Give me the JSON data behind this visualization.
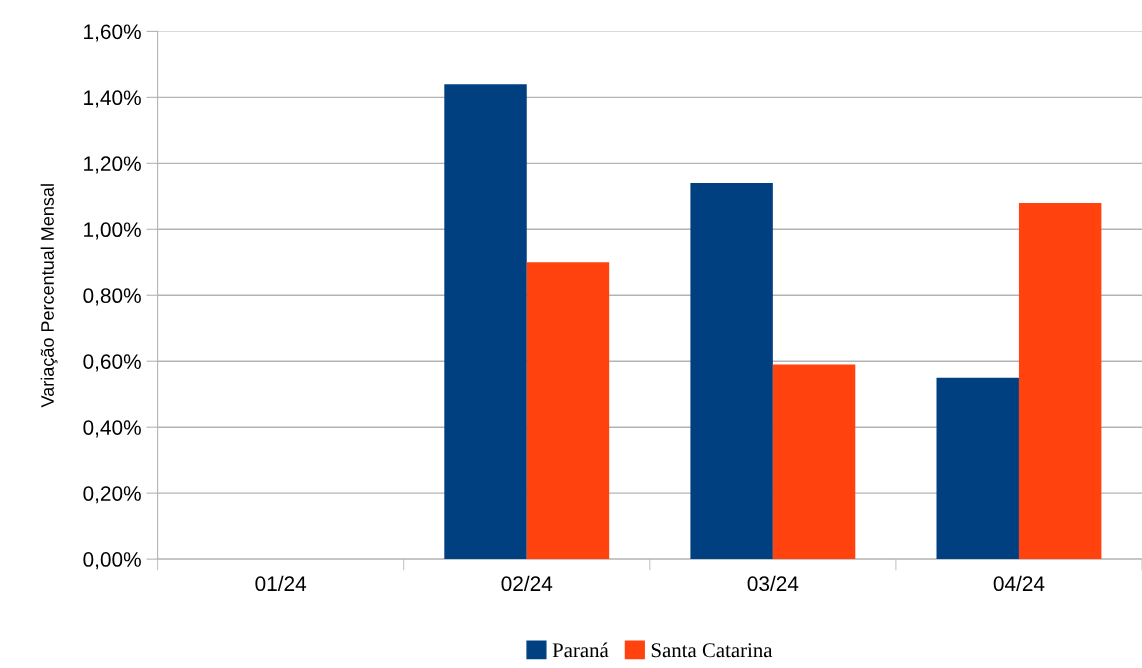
{
  "chart_data": {
    "type": "bar",
    "ylabel": "Variação Percentual Mensal",
    "categories": [
      "01/24",
      "02/24",
      "03/24",
      "04/24"
    ],
    "series": [
      {
        "name": "Paraná",
        "color": "#004080",
        "values": [
          0.0,
          1.44,
          1.14,
          0.55
        ]
      },
      {
        "name": "Santa Catarina",
        "color": "#ff420e",
        "values": [
          0.0,
          0.9,
          0.59,
          1.08
        ]
      }
    ],
    "ylim": [
      0,
      1.6
    ],
    "yticks": [
      {
        "value": 0,
        "label": "0,00%"
      },
      {
        "value": 0.2,
        "label": "0,20%"
      },
      {
        "value": 0.4,
        "label": "0,40%"
      },
      {
        "value": 0.6,
        "label": "0,60%"
      },
      {
        "value": 0.8,
        "label": "0,80%"
      },
      {
        "value": 1.0,
        "label": "1,00%"
      },
      {
        "value": 1.2,
        "label": "1,20%"
      },
      {
        "value": 1.4,
        "label": "1,40%"
      },
      {
        "value": 1.6,
        "label": "1,60%"
      }
    ],
    "grid": "y",
    "legend": "bottom"
  }
}
